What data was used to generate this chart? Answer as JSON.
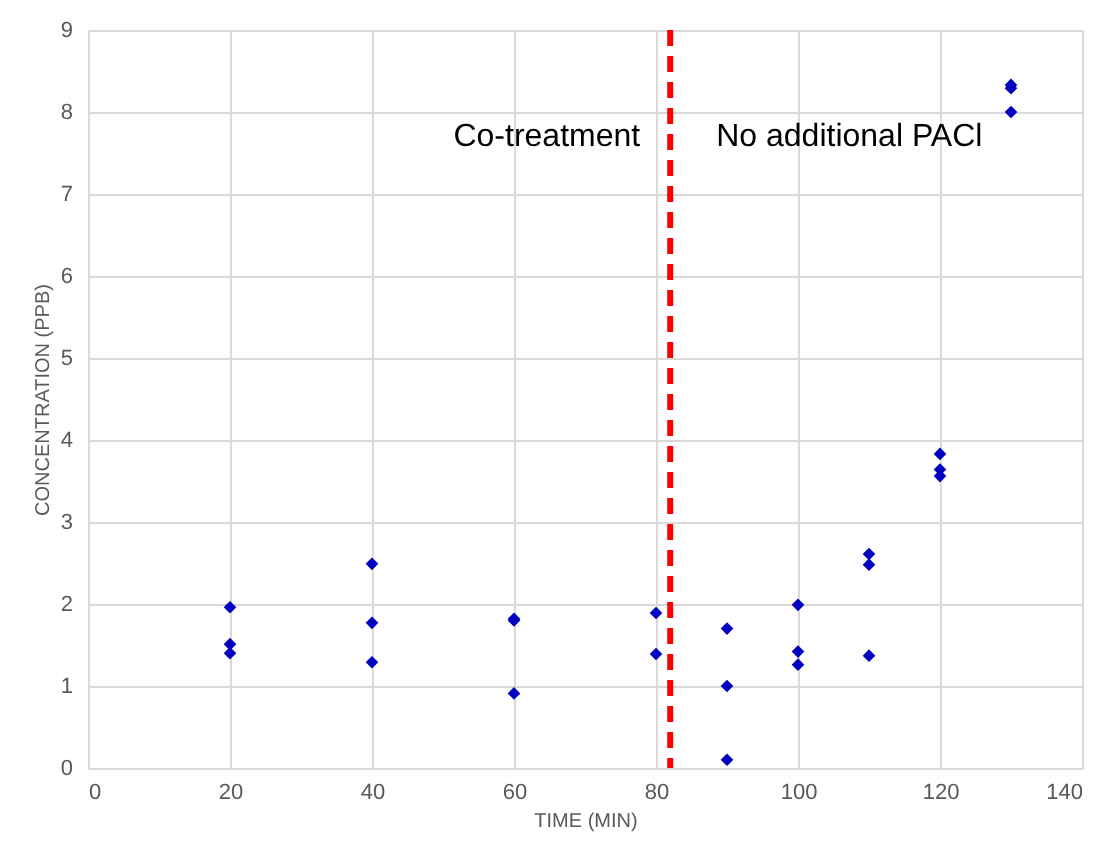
{
  "chart_data": {
    "type": "scatter",
    "xlabel": "TIME (MIN)",
    "ylabel": "CONCENTRATION (PPB)",
    "x": [
      20,
      20,
      20,
      40,
      40,
      40,
      60,
      60,
      60,
      80,
      80,
      90,
      90,
      90,
      100,
      100,
      100,
      110,
      110,
      110,
      120,
      120,
      120,
      130,
      130,
      130
    ],
    "series": [
      {
        "color": "#0000c0",
        "values": [
          1.96,
          1.51,
          1.4,
          2.49,
          1.77,
          1.29,
          1.82,
          1.8,
          0.91,
          1.89,
          1.39,
          1.7,
          1.0,
          0.1,
          1.99,
          1.42,
          1.26,
          2.61,
          2.48,
          1.37,
          3.83,
          3.64,
          3.56,
          8.33,
          8.29,
          8.0
        ]
      }
    ],
    "xlim": [
      0,
      140
    ],
    "xticks": [
      0,
      20,
      40,
      60,
      80,
      100,
      120,
      140
    ],
    "ylim": [
      0,
      9
    ],
    "yticks": [
      0,
      1,
      2,
      3,
      4,
      5,
      6,
      7,
      8,
      9
    ],
    "grid": true,
    "marker": "diamond",
    "ref_lines": [
      {
        "axis": "x",
        "value": 82,
        "color": "#ff0000",
        "line_style": "dashed"
      }
    ],
    "annotations": [
      "Co-treatment",
      "No additional PACl"
    ]
  }
}
